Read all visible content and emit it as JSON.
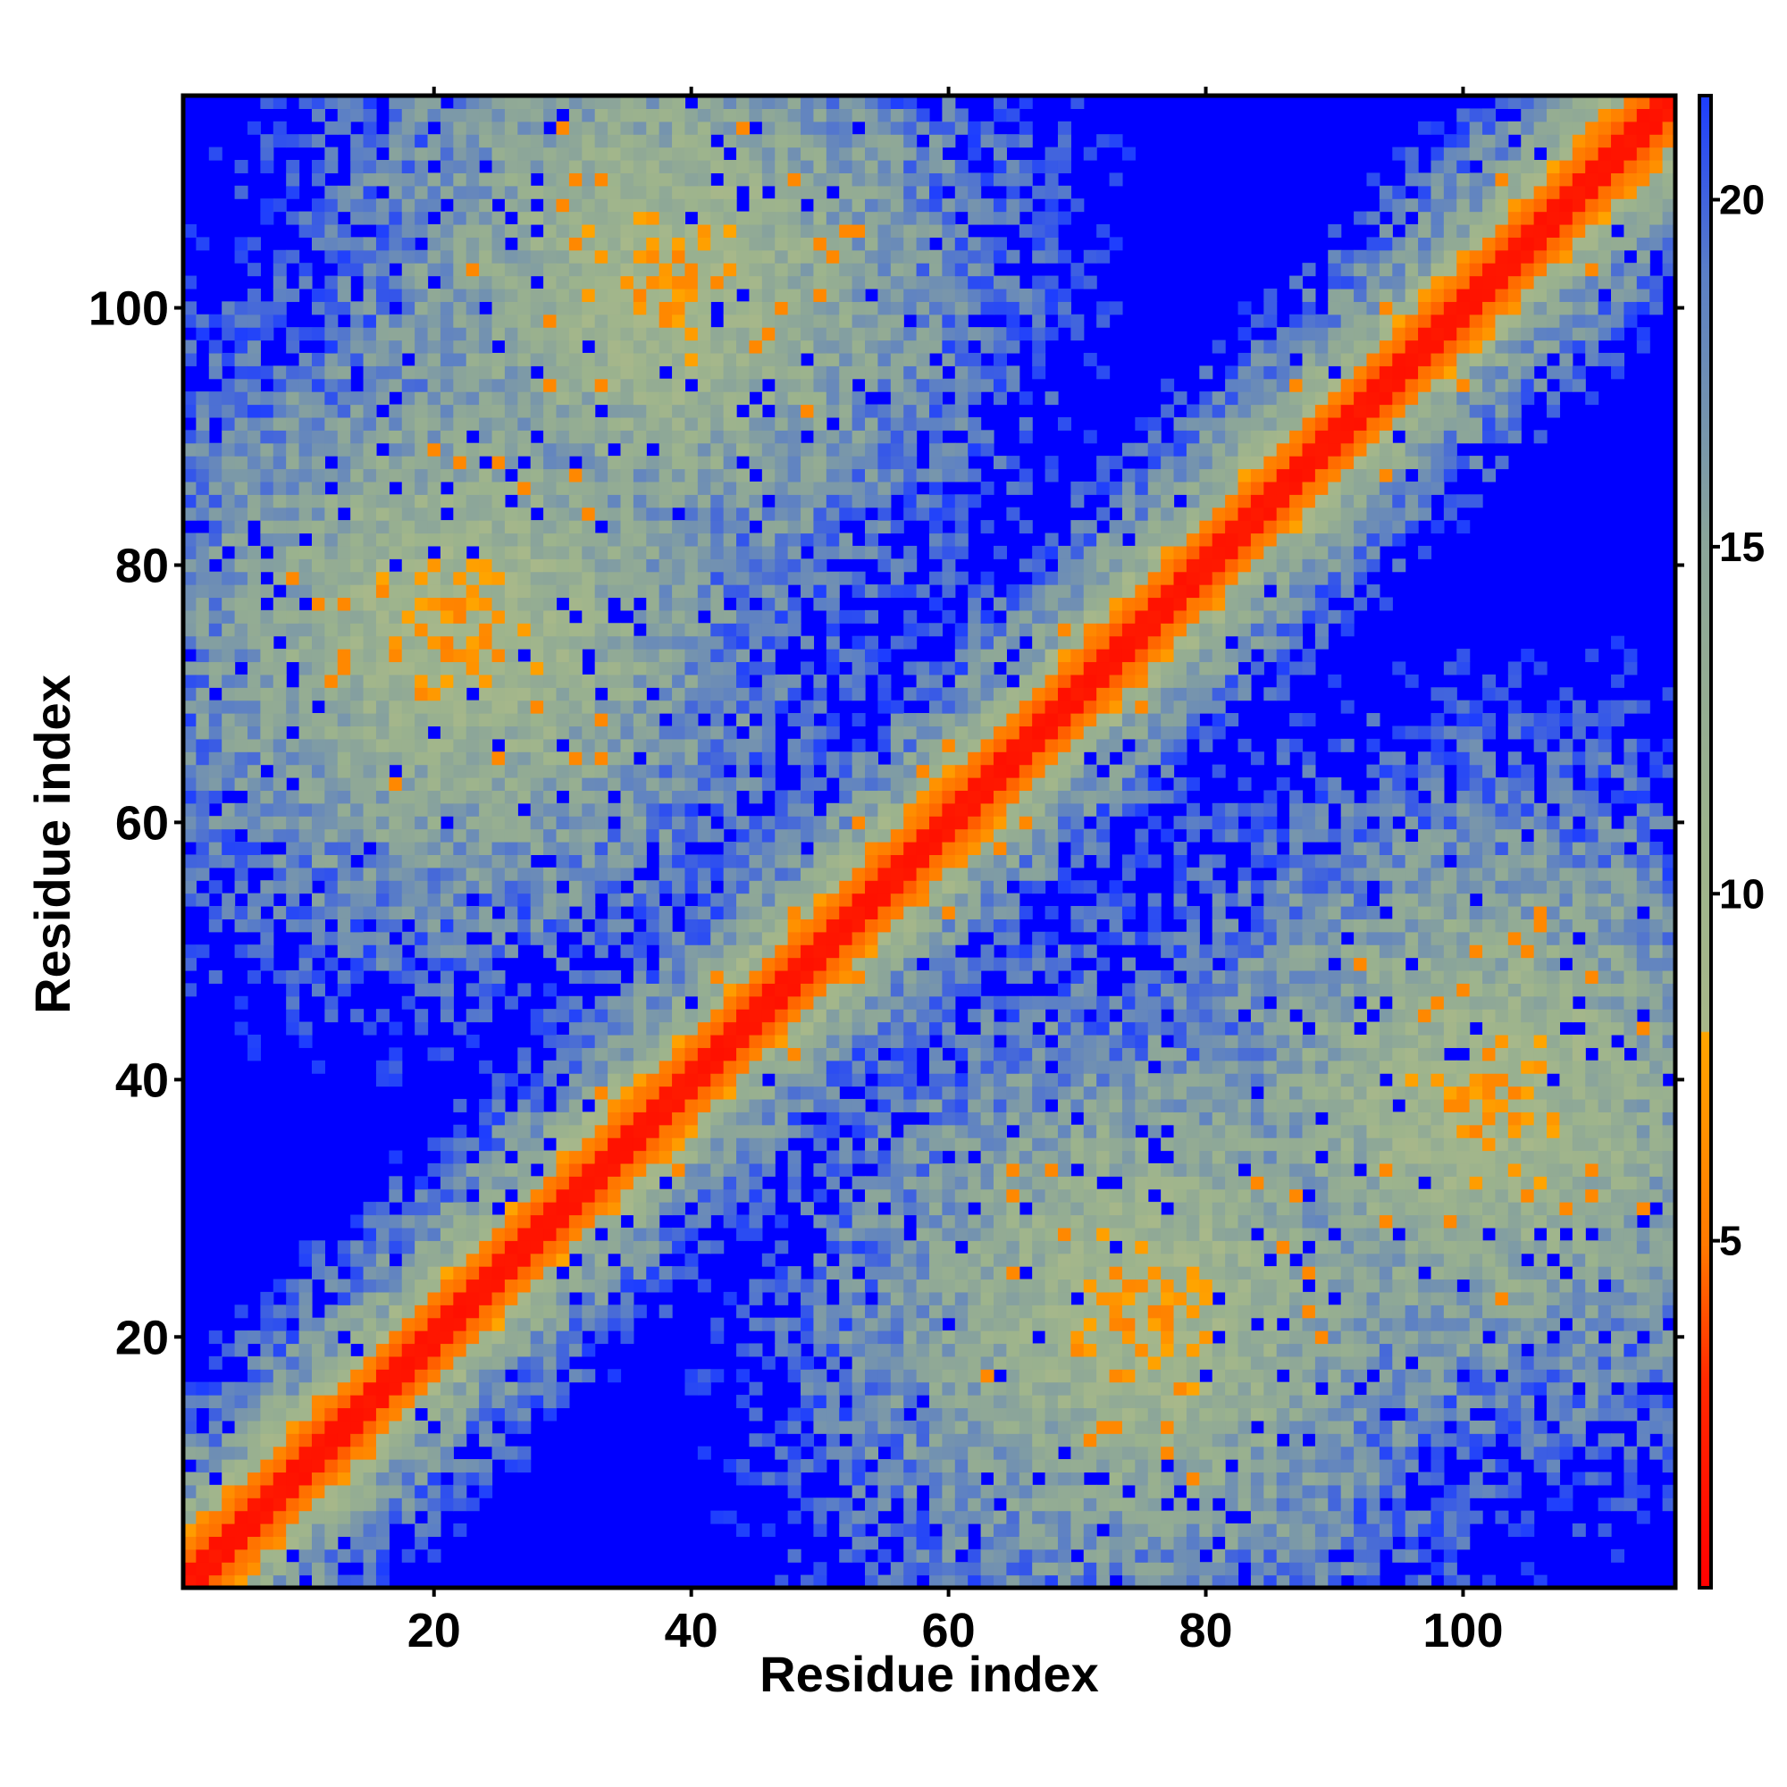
{
  "chart_data": {
    "type": "heatmap",
    "title": "",
    "xlabel": "Residue index",
    "ylabel": "Residue index",
    "n_residues": 116,
    "x_range": [
      1,
      116
    ],
    "y_range": [
      1,
      116
    ],
    "x_ticks": [
      20,
      40,
      60,
      80,
      100
    ],
    "y_ticks": [
      20,
      40,
      60,
      80,
      100
    ],
    "colorbar": {
      "range": [
        0,
        21.5
      ],
      "ticks": [
        5,
        10,
        15,
        20
      ],
      "stops": [
        {
          "value": 0,
          "color": "#ff0000"
        },
        {
          "value": 3,
          "color": "#ff2a00"
        },
        {
          "value": 5,
          "color": "#ff7a00"
        },
        {
          "value": 8,
          "color": "#ffa500"
        },
        {
          "value": 8.01,
          "color": "#a8b88a"
        },
        {
          "value": 11,
          "color": "#9cb38d"
        },
        {
          "value": 15,
          "color": "#8ba59a"
        },
        {
          "value": 19,
          "color": "#5b7fc6"
        },
        {
          "value": 21.5,
          "color": "#1d3dff"
        }
      ],
      "saturated_color": "#0000ff"
    },
    "contact_regions": [
      {
        "x_center": 58,
        "y_center": 58,
        "description": "main diagonal",
        "slope": 1
      },
      {
        "x_center": 75,
        "y_center": 22,
        "description": "anti-diagonal band lower right"
      },
      {
        "x_center": 22,
        "y_center": 75,
        "description": "anti-diagonal band upper left"
      },
      {
        "x_center": 102,
        "y_center": 38,
        "description": "off-diagonal cluster"
      },
      {
        "x_center": 38,
        "y_center": 102,
        "description": "off-diagonal cluster"
      }
    ],
    "grid": false,
    "legend": "none"
  }
}
